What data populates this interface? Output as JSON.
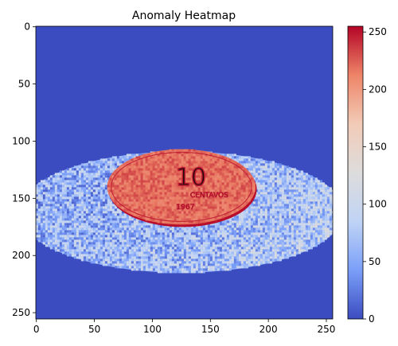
{
  "chart_data": {
    "type": "heatmap",
    "title": "Anomaly Heatmap",
    "xlabel": "",
    "ylabel": "",
    "image_size": [
      256,
      256
    ],
    "xlim": [
      0,
      255
    ],
    "ylim": [
      255,
      0
    ],
    "x_ticks": [
      0,
      50,
      100,
      150,
      200,
      250
    ],
    "y_ticks": [
      0,
      50,
      100,
      150,
      200,
      250
    ],
    "colormap": "coolwarm",
    "colormap_stops": [
      "#3b4cc0",
      "#7b9ff9",
      "#c0d4f5",
      "#dddcdc",
      "#f2cbb7",
      "#ee8468",
      "#b40426"
    ],
    "colorbar": {
      "range": [
        0,
        255
      ],
      "ticks": [
        0,
        50,
        100,
        150,
        200,
        250
      ]
    },
    "background_value": 0,
    "regions": [
      {
        "name": "outer ellipse",
        "center": [
          125,
          162
        ],
        "radius_x": 140,
        "radius_y": 53,
        "value_range": [
          10,
          110
        ]
      },
      {
        "name": "coin",
        "center": [
          125,
          140
        ],
        "radius_x": 64,
        "radius_y": 33,
        "value_range": [
          200,
          240
        ]
      },
      {
        "name": "coin engraving",
        "text": "10 CENTAVOS 1967",
        "value": 235
      }
    ]
  }
}
